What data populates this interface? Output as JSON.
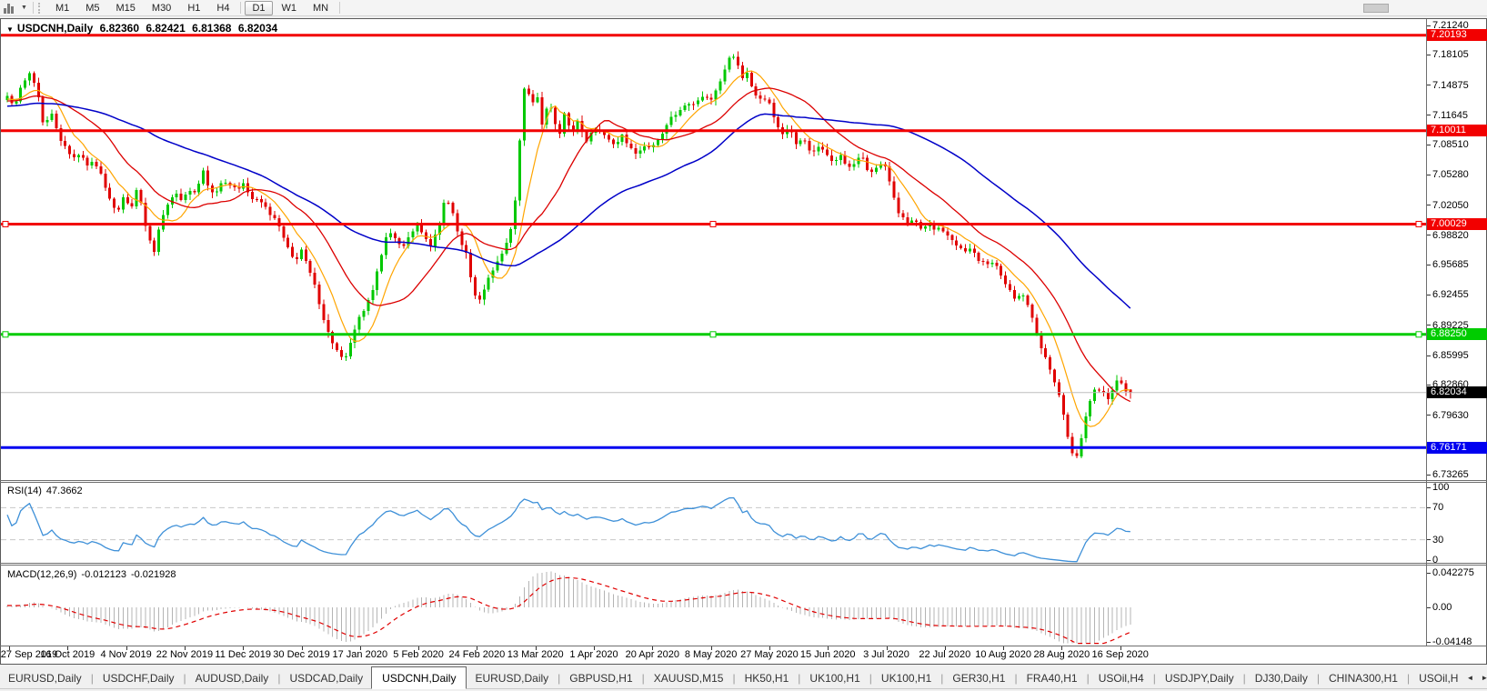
{
  "toolbar": {
    "timeframes": [
      "M1",
      "M5",
      "M15",
      "M30",
      "H1",
      "H4",
      "D1",
      "W1",
      "MN"
    ],
    "active_timeframe": "D1"
  },
  "chart": {
    "title": {
      "expander": "▼",
      "symbol": "USDCNH,Daily",
      "open": "6.82360",
      "high": "6.82421",
      "low": "6.81368",
      "close": "6.82034"
    },
    "price_axis": {
      "ticks": [
        {
          "label": "7.21240",
          "value": 7.2124
        },
        {
          "label": "7.18105",
          "value": 7.18105
        },
        {
          "label": "7.14875",
          "value": 7.14875
        },
        {
          "label": "7.11645",
          "value": 7.11645
        },
        {
          "label": "7.08510",
          "value": 7.0851
        },
        {
          "label": "7.05280",
          "value": 7.0528
        },
        {
          "label": "7.02050",
          "value": 7.0205
        },
        {
          "label": "6.98820",
          "value": 6.9882
        },
        {
          "label": "6.95685",
          "value": 6.95685
        },
        {
          "label": "6.92455",
          "value": 6.92455
        },
        {
          "label": "6.89225",
          "value": 6.89225
        },
        {
          "label": "6.85995",
          "value": 6.85995
        },
        {
          "label": "6.82860",
          "value": 6.8286
        },
        {
          "label": "6.79630",
          "value": 6.7963
        },
        {
          "label": "6.73265",
          "value": 6.73265
        }
      ],
      "badges": [
        {
          "label": "7.20193",
          "value": 7.20193,
          "bg": "#F20000",
          "fg": "#FFFFFF"
        },
        {
          "label": "7.10011",
          "value": 7.10011,
          "bg": "#F20000",
          "fg": "#FFFFFF"
        },
        {
          "label": "7.00029",
          "value": 7.00029,
          "bg": "#F20000",
          "fg": "#FFFFFF"
        },
        {
          "label": "6.88250",
          "value": 6.8825,
          "bg": "#00CC00",
          "fg": "#FFFFFF"
        },
        {
          "label": "6.82034",
          "value": 6.82034,
          "bg": "#000000",
          "fg": "#FFFFFF"
        },
        {
          "label": "6.76171",
          "value": 6.76171,
          "bg": "#0000F0",
          "fg": "#FFFFFF"
        }
      ]
    },
    "dates": [
      "27 Sep 2019",
      "16 Oct 2019",
      "4 Nov 2019",
      "22 Nov 2019",
      "11 Dec 2019",
      "30 Dec 2019",
      "17 Jan 2020",
      "5 Feb 2020",
      "24 Feb 2020",
      "13 Mar 2020",
      "1 Apr 2020",
      "20 Apr 2020",
      "8 May 2020",
      "27 May 2020",
      "15 Jun 2020",
      "3 Jul 2020",
      "22 Jul 2020",
      "10 Aug 2020",
      "28 Aug 2020",
      "16 Sep 2020"
    ]
  },
  "rsi": {
    "name": "RSI(14)",
    "value": "47.3662",
    "axis_labels": [
      {
        "label": "100",
        "value": 100
      },
      {
        "label": "70",
        "value": 70
      },
      {
        "label": "30",
        "value": 30
      },
      {
        "label": "0",
        "value": 0
      }
    ],
    "upper_level": 70,
    "lower_level": 30,
    "line_color": "#3E90D8"
  },
  "macd": {
    "name": "MACD(12,26,9)",
    "main_value": "-0.012123",
    "signal_value": "-0.021928",
    "axis_labels": [
      "0.042275",
      "0.00",
      "-0.04148"
    ],
    "histogram_color": "#B4B4B4",
    "signal_color": "#E00000"
  },
  "tabs": [
    {
      "label": "EURUSD,Daily",
      "active": false
    },
    {
      "label": "USDCHF,Daily",
      "active": false
    },
    {
      "label": "AUDUSD,Daily",
      "active": false
    },
    {
      "label": "USDCAD,Daily",
      "active": false
    },
    {
      "label": "USDCNH,Daily",
      "active": true
    },
    {
      "label": "EURUSD,Daily",
      "active": false
    },
    {
      "label": "GBPUSD,H1",
      "active": false
    },
    {
      "label": "XAUUSD,M15",
      "active": false
    },
    {
      "label": "HK50,H1",
      "active": false
    },
    {
      "label": "UK100,H1",
      "active": false
    },
    {
      "label": "UK100,H1",
      "active": false
    },
    {
      "label": "GER30,H1",
      "active": false
    },
    {
      "label": "FRA40,H1",
      "active": false
    },
    {
      "label": "USOil,H4",
      "active": false
    },
    {
      "label": "USDJPY,Daily",
      "active": false
    },
    {
      "label": "DJ30,Daily",
      "active": false
    },
    {
      "label": "CHINA300,H1",
      "active": false
    },
    {
      "label": "USOil,H",
      "active": false
    }
  ],
  "tab_scroll": {
    "left": "◄",
    "right": "►"
  },
  "chart_data": {
    "type": "candlestick",
    "symbol": "USDCNH",
    "timeframe": "Daily",
    "last_candle": {
      "open": 6.8236,
      "high": 6.82421,
      "low": 6.81368,
      "close": 6.82034
    },
    "visible_range": {
      "price_min": 6.73265,
      "price_max": 7.2124,
      "date_start": "27 Sep 2019",
      "date_end": "16 Sep 2020"
    },
    "levels": [
      {
        "name": "resistance-1",
        "value": 7.20193,
        "color": "#F20000",
        "width": 3,
        "selected": false
      },
      {
        "name": "resistance-2",
        "value": 7.10011,
        "color": "#F20000",
        "width": 3,
        "selected": false
      },
      {
        "name": "resistance-3",
        "value": 7.00029,
        "color": "#F20000",
        "width": 3,
        "selected": true
      },
      {
        "name": "support-green",
        "value": 6.8825,
        "color": "#00CC00",
        "width": 3,
        "selected": true
      },
      {
        "name": "current-price-line",
        "value": 6.82034,
        "color": "#BEBEBE",
        "width": 1,
        "selected": false
      },
      {
        "name": "support-blue",
        "value": 6.76171,
        "color": "#0000F0",
        "width": 3,
        "selected": false
      }
    ],
    "colors": {
      "up": "#00C800",
      "down": "#E00000"
    },
    "moving_averages": [
      {
        "period": 8,
        "color": "#FFA500"
      },
      {
        "period": 20,
        "color": "#DC0000"
      },
      {
        "period": 55,
        "color": "#0000C8"
      }
    ],
    "indicators": [
      {
        "name": "RSI",
        "period": 14,
        "current": 47.3662
      },
      {
        "name": "MACD",
        "params": [
          12,
          26,
          9
        ],
        "main": -0.012123,
        "signal": -0.021928
      }
    ],
    "anchors": [
      [
        -200,
        7.12
      ],
      [
        8,
        7.135
      ],
      [
        16,
        7.125
      ],
      [
        24,
        7.15
      ],
      [
        32,
        7.16
      ],
      [
        40,
        7.15
      ],
      [
        48,
        7.105
      ],
      [
        56,
        7.12
      ],
      [
        64,
        7.095
      ],
      [
        72,
        7.085
      ],
      [
        80,
        7.07
      ],
      [
        88,
        7.078
      ],
      [
        96,
        7.062
      ],
      [
        104,
        7.068
      ],
      [
        112,
        7.05
      ],
      [
        120,
        7.028
      ],
      [
        128,
        7.012
      ],
      [
        136,
        7.03
      ],
      [
        144,
        7.018
      ],
      [
        152,
        7.04
      ],
      [
        158,
        7.002
      ],
      [
        164,
        6.985
      ],
      [
        170,
        6.972
      ],
      [
        176,
        7.0
      ],
      [
        184,
        7.018
      ],
      [
        192,
        7.032
      ],
      [
        200,
        7.026
      ],
      [
        208,
        7.038
      ],
      [
        216,
        7.03
      ],
      [
        222,
        7.062
      ],
      [
        228,
        7.04
      ],
      [
        236,
        7.034
      ],
      [
        244,
        7.046
      ],
      [
        252,
        7.04
      ],
      [
        260,
        7.036
      ],
      [
        268,
        7.042
      ],
      [
        276,
        7.03
      ],
      [
        284,
        7.026
      ],
      [
        292,
        7.02
      ],
      [
        300,
        7.008
      ],
      [
        308,
        6.995
      ],
      [
        316,
        6.978
      ],
      [
        324,
        6.962
      ],
      [
        332,
        6.972
      ],
      [
        340,
        6.952
      ],
      [
        348,
        6.928
      ],
      [
        356,
        6.898
      ],
      [
        364,
        6.878
      ],
      [
        372,
        6.862
      ],
      [
        378,
        6.853
      ],
      [
        386,
        6.876
      ],
      [
        394,
        6.897
      ],
      [
        402,
        6.912
      ],
      [
        410,
        6.932
      ],
      [
        418,
        6.962
      ],
      [
        426,
        6.995
      ],
      [
        434,
        6.988
      ],
      [
        442,
        6.975
      ],
      [
        450,
        6.988
      ],
      [
        458,
        7.002
      ],
      [
        466,
        6.99
      ],
      [
        474,
        6.978
      ],
      [
        482,
        6.996
      ],
      [
        490,
        7.032
      ],
      [
        496,
        7.018
      ],
      [
        504,
        6.988
      ],
      [
        512,
        6.972
      ],
      [
        520,
        6.928
      ],
      [
        528,
        6.918
      ],
      [
        536,
        6.94
      ],
      [
        544,
        6.955
      ],
      [
        552,
        6.968
      ],
      [
        560,
        6.988
      ],
      [
        566,
        7.02
      ],
      [
        572,
        7.095
      ],
      [
        578,
        7.165
      ],
      [
        584,
        7.12
      ],
      [
        590,
        7.145
      ],
      [
        596,
        7.105
      ],
      [
        602,
        7.13
      ],
      [
        608,
        7.118
      ],
      [
        614,
        7.092
      ],
      [
        620,
        7.118
      ],
      [
        628,
        7.098
      ],
      [
        636,
        7.112
      ],
      [
        644,
        7.088
      ],
      [
        652,
        7.098
      ],
      [
        660,
        7.102
      ],
      [
        668,
        7.09
      ],
      [
        676,
        7.086
      ],
      [
        684,
        7.096
      ],
      [
        692,
        7.082
      ],
      [
        700,
        7.072
      ],
      [
        708,
        7.086
      ],
      [
        716,
        7.078
      ],
      [
        724,
        7.092
      ],
      [
        732,
        7.102
      ],
      [
        740,
        7.116
      ],
      [
        748,
        7.122
      ],
      [
        756,
        7.132
      ],
      [
        764,
        7.126
      ],
      [
        772,
        7.136
      ],
      [
        780,
        7.132
      ],
      [
        788,
        7.142
      ],
      [
        796,
        7.162
      ],
      [
        804,
        7.186
      ],
      [
        810,
        7.172
      ],
      [
        816,
        7.156
      ],
      [
        822,
        7.162
      ],
      [
        828,
        7.142
      ],
      [
        836,
        7.132
      ],
      [
        844,
        7.136
      ],
      [
        852,
        7.112
      ],
      [
        860,
        7.096
      ],
      [
        868,
        7.102
      ],
      [
        876,
        7.086
      ],
      [
        884,
        7.092
      ],
      [
        892,
        7.076
      ],
      [
        900,
        7.082
      ],
      [
        908,
        7.076
      ],
      [
        916,
        7.066
      ],
      [
        924,
        7.072
      ],
      [
        932,
        7.062
      ],
      [
        940,
        7.066
      ],
      [
        948,
        7.072
      ],
      [
        956,
        7.056
      ],
      [
        964,
        7.062
      ],
      [
        972,
        7.066
      ],
      [
        980,
        7.042
      ],
      [
        988,
        7.012
      ],
      [
        996,
        7.002
      ],
      [
        1004,
        7.006
      ],
      [
        1012,
        6.996
      ],
      [
        1020,
        7.002
      ],
      [
        1028,
        6.992
      ],
      [
        1036,
        6.996
      ],
      [
        1044,
        6.986
      ],
      [
        1052,
        6.976
      ],
      [
        1060,
        6.972
      ],
      [
        1068,
        6.976
      ],
      [
        1076,
        6.962
      ],
      [
        1084,
        6.956
      ],
      [
        1092,
        6.962
      ],
      [
        1100,
        6.946
      ],
      [
        1108,
        6.932
      ],
      [
        1116,
        6.922
      ],
      [
        1124,
        6.926
      ],
      [
        1132,
        6.912
      ],
      [
        1140,
        6.882
      ],
      [
        1148,
        6.862
      ],
      [
        1156,
        6.842
      ],
      [
        1164,
        6.822
      ],
      [
        1170,
        6.795
      ],
      [
        1176,
        6.762
      ],
      [
        1182,
        6.748
      ],
      [
        1188,
        6.768
      ],
      [
        1194,
        6.798
      ],
      [
        1200,
        6.815
      ],
      [
        1206,
        6.828
      ],
      [
        1212,
        6.82
      ],
      [
        1218,
        6.812
      ],
      [
        1224,
        6.826
      ],
      [
        1230,
        6.836
      ],
      [
        1236,
        6.822
      ],
      [
        1246,
        6.8203
      ]
    ]
  }
}
